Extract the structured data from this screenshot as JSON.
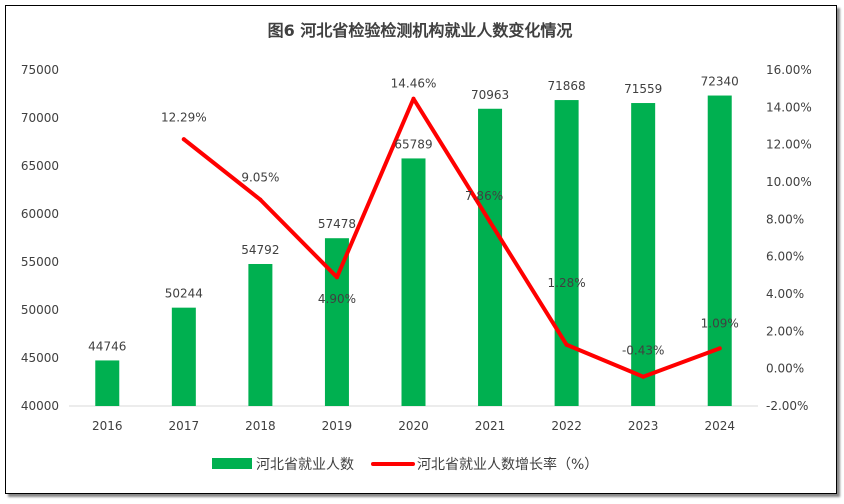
{
  "chart_data": {
    "type": "bar+line",
    "title": "图6 河北省检验检测机构就业人数变化情况",
    "categories": [
      "2016",
      "2017",
      "2018",
      "2019",
      "2020",
      "2021",
      "2022",
      "2023",
      "2024"
    ],
    "series": [
      {
        "name": "河北省就业人数",
        "type": "bar",
        "axis": "left",
        "color": "#00B050",
        "values": [
          44746,
          50244,
          54792,
          57478,
          65789,
          70963,
          71868,
          71559,
          72340
        ],
        "labels": [
          "44746",
          "50244",
          "54792",
          "57478",
          "65789",
          "70963",
          "71868",
          "71559",
          "72340"
        ]
      },
      {
        "name": "河北省就业人数增长率（%）",
        "type": "line",
        "axis": "right",
        "color": "#FF0000",
        "values": [
          null,
          12.29,
          9.05,
          4.9,
          14.46,
          7.86,
          1.28,
          -0.43,
          1.09
        ],
        "labels": [
          "",
          "12.29%",
          "9.05%",
          "4.90%",
          "14.46%",
          "7.86%",
          "1.28%",
          "-0.43%",
          "1.09%"
        ]
      }
    ],
    "left_axis": {
      "ylim": [
        40000,
        75000
      ],
      "ticks": [
        "40000",
        "45000",
        "50000",
        "55000",
        "60000",
        "65000",
        "70000",
        "75000"
      ]
    },
    "right_axis": {
      "ylim": [
        -2,
        16
      ],
      "ticks": [
        "-2.00%",
        "0.00%",
        "2.00%",
        "4.00%",
        "6.00%",
        "8.00%",
        "10.00%",
        "12.00%",
        "14.00%",
        "16.00%"
      ]
    },
    "grid": false,
    "legend": "bottom"
  }
}
